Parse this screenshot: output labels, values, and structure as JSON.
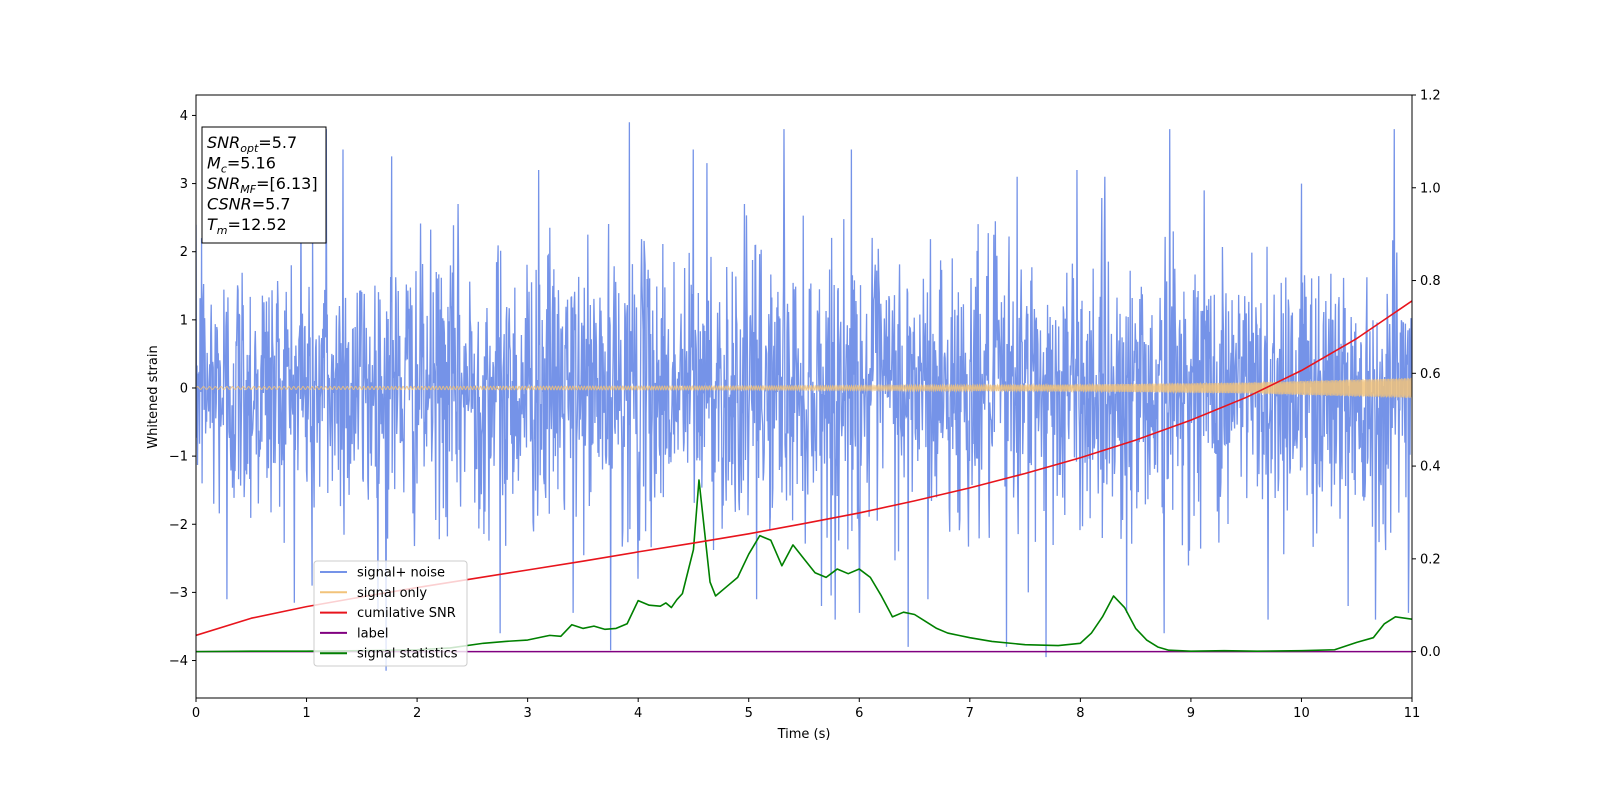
{
  "chart_data": {
    "type": "line",
    "xlabel": "Time (s)",
    "ylabel": "Whitened strain",
    "xlim": [
      0,
      11
    ],
    "ylim": [
      -4.55,
      4.3
    ],
    "y2lim": [
      -0.1,
      1.2
    ],
    "x_ticks": [
      0,
      1,
      2,
      3,
      4,
      5,
      6,
      7,
      8,
      9,
      10,
      11
    ],
    "y_ticks": [
      -4,
      -3,
      -2,
      -1,
      0,
      1,
      2,
      3,
      4
    ],
    "y_tick_labels": [
      "−4",
      "−3",
      "−2",
      "−1",
      "0",
      "1",
      "2",
      "3",
      "4"
    ],
    "y2_ticks": [
      0.0,
      0.2,
      0.4,
      0.6,
      0.8,
      1.0,
      1.2
    ],
    "y2_tick_labels": [
      "0.0",
      "0.2",
      "0.4",
      "0.6",
      "0.8",
      "1.0",
      "1.2"
    ],
    "grid": false,
    "legend_position": "lower-left",
    "stats_box": [
      {
        "name": "SNR",
        "sub": "opt",
        "value": "=5.7"
      },
      {
        "name": "M",
        "sub": "c",
        "value": "=5.16"
      },
      {
        "name": "SNR",
        "sub": "MF",
        "value": "=[6.13]"
      },
      {
        "name": "CSNR",
        "sub": "",
        "value": "=5.7"
      },
      {
        "name": "T",
        "sub": "m",
        "value": "=12.52"
      }
    ],
    "series": [
      {
        "name": "signal+ noise",
        "color": "#7593e8",
        "axis": "left",
        "description_kind": "noise",
        "amplitude_core": 1.0,
        "spikes": [
          [
            0.05,
            2.2
          ],
          [
            0.28,
            -3.1
          ],
          [
            0.95,
            2.7
          ],
          [
            1.05,
            -2.9
          ],
          [
            1.18,
            3.8
          ],
          [
            1.33,
            3.5
          ],
          [
            1.72,
            -4.15
          ],
          [
            1.77,
            3.4
          ],
          [
            2.37,
            2.7
          ],
          [
            2.75,
            -3.6
          ],
          [
            3.1,
            3.2
          ],
          [
            3.41,
            -3.3
          ],
          [
            3.75,
            -3.85
          ],
          [
            3.92,
            3.9
          ],
          [
            4.0,
            -2.8
          ],
          [
            4.5,
            3.5
          ],
          [
            4.62,
            3.3
          ],
          [
            4.96,
            2.7
          ],
          [
            5.07,
            -3.1
          ],
          [
            5.32,
            3.8
          ],
          [
            5.66,
            -3.2
          ],
          [
            5.78,
            -3.4
          ],
          [
            5.93,
            3.5
          ],
          [
            6.0,
            -3.3
          ],
          [
            6.44,
            -3.8
          ],
          [
            6.62,
            -3.1
          ],
          [
            7.33,
            -3.8
          ],
          [
            7.43,
            3.1
          ],
          [
            7.53,
            -3.0
          ],
          [
            7.69,
            -3.95
          ],
          [
            7.97,
            3.2
          ],
          [
            8.22,
            3.1
          ],
          [
            8.42,
            -3.3
          ],
          [
            8.76,
            -3.6
          ],
          [
            8.81,
            3.8
          ],
          [
            9.12,
            2.9
          ],
          [
            9.7,
            -3.4
          ],
          [
            10.0,
            3.0
          ],
          [
            10.42,
            -3.2
          ],
          [
            10.67,
            -3.4
          ],
          [
            10.84,
            3.8
          ],
          [
            10.97,
            -3.3
          ]
        ]
      },
      {
        "name": "signal only",
        "color": "#f2c37a",
        "axis": "left",
        "chirp_envelope": [
          [
            0,
            0.02
          ],
          [
            5,
            0.03
          ],
          [
            8,
            0.05
          ],
          [
            9.5,
            0.08
          ],
          [
            11,
            0.15
          ]
        ]
      },
      {
        "name": "cumilative SNR",
        "color": "#e8141c",
        "axis": "right",
        "x": [
          0,
          0.5,
          1,
          1.5,
          2,
          2.5,
          3,
          3.5,
          4,
          4.5,
          5,
          5.5,
          6,
          6.5,
          7,
          7.5,
          8,
          8.5,
          9,
          9.5,
          10,
          10.5,
          11
        ],
        "y": [
          0.035,
          0.072,
          0.097,
          0.118,
          0.138,
          0.157,
          0.176,
          0.195,
          0.215,
          0.234,
          0.254,
          0.276,
          0.299,
          0.325,
          0.353,
          0.384,
          0.418,
          0.456,
          0.499,
          0.548,
          0.606,
          0.675,
          0.756
        ]
      },
      {
        "name": "label",
        "color": "#800080",
        "axis": "right",
        "x": [
          0,
          11
        ],
        "y": [
          0.0,
          0.0
        ]
      },
      {
        "name": "signal statistics",
        "color": "#008000",
        "axis": "right",
        "x": [
          0,
          0.5,
          1.0,
          1.5,
          2.0,
          2.3,
          2.6,
          2.8,
          3.0,
          3.2,
          3.3,
          3.4,
          3.5,
          3.6,
          3.7,
          3.8,
          3.9,
          4.0,
          4.1,
          4.2,
          4.25,
          4.3,
          4.35,
          4.4,
          4.5,
          4.55,
          4.6,
          4.65,
          4.7,
          4.8,
          4.9,
          5.0,
          5.1,
          5.2,
          5.3,
          5.4,
          5.5,
          5.6,
          5.7,
          5.8,
          5.9,
          6.0,
          6.1,
          6.2,
          6.3,
          6.4,
          6.5,
          6.6,
          6.7,
          6.8,
          6.9,
          7.0,
          7.2,
          7.5,
          7.8,
          8.0,
          8.1,
          8.2,
          8.3,
          8.4,
          8.5,
          8.6,
          8.7,
          8.8,
          9.0,
          9.3,
          9.6,
          10.0,
          10.3,
          10.5,
          10.65,
          10.75,
          10.85,
          11.0
        ],
        "y": [
          0.0,
          0.001,
          0.001,
          0.002,
          0.004,
          0.008,
          0.018,
          0.022,
          0.025,
          0.035,
          0.033,
          0.058,
          0.05,
          0.055,
          0.048,
          0.05,
          0.06,
          0.11,
          0.1,
          0.098,
          0.105,
          0.095,
          0.112,
          0.125,
          0.22,
          0.37,
          0.26,
          0.15,
          0.12,
          0.14,
          0.16,
          0.21,
          0.25,
          0.24,
          0.185,
          0.23,
          0.2,
          0.17,
          0.16,
          0.178,
          0.168,
          0.178,
          0.16,
          0.12,
          0.075,
          0.085,
          0.08,
          0.065,
          0.05,
          0.04,
          0.035,
          0.03,
          0.022,
          0.015,
          0.013,
          0.018,
          0.04,
          0.075,
          0.12,
          0.095,
          0.05,
          0.025,
          0.01,
          0.003,
          0.001,
          0.002,
          0.001,
          0.002,
          0.004,
          0.02,
          0.03,
          0.06,
          0.075,
          0.07
        ]
      }
    ]
  }
}
